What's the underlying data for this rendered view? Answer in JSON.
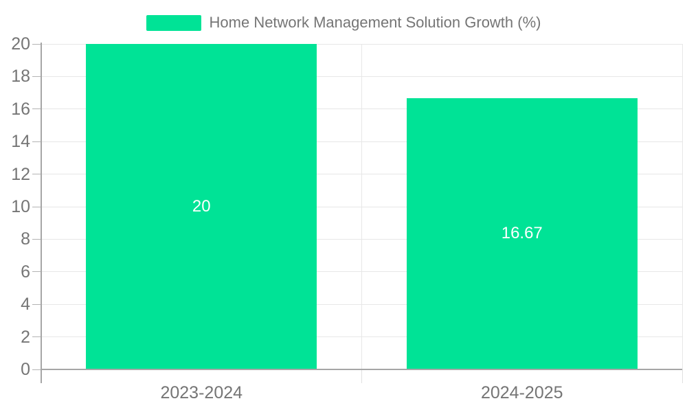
{
  "legend": {
    "label": "Home Network Management Solution Growth (%)",
    "marker_color": "#00E396"
  },
  "chart_data": {
    "type": "bar",
    "title": "Home Network Management Solution Growth (%)",
    "categories": [
      "2023-2024",
      "2024-2025"
    ],
    "series": [
      {
        "name": "Home Network Management Solution Growth (%)",
        "values": [
          20,
          16.67
        ]
      }
    ],
    "data_labels": [
      "20",
      "16.67"
    ],
    "xlabel": "",
    "ylabel": "",
    "ylim": [
      0,
      20
    ],
    "ytick_step": 2,
    "yticks": [
      0,
      2,
      4,
      6,
      8,
      10,
      12,
      14,
      16,
      18,
      20
    ],
    "grid": true,
    "legend_position": "top",
    "colors": {
      "bar": "#00E396",
      "axis_label": "#757575",
      "data_label": "#ffffff",
      "gridline": "#e7e7e7",
      "axis_line": "#a6a6a6",
      "y_tick": "#b3b3b3",
      "x_tick": "#e0e0e0"
    }
  }
}
